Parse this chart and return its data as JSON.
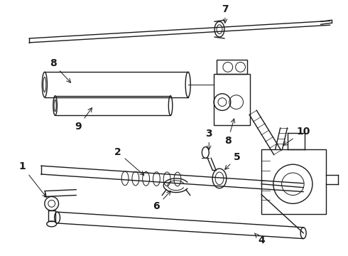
{
  "bg_color": "#ffffff",
  "line_color": "#1a1a1a",
  "label_color": "#000000",
  "label_fontsize": 10,
  "figsize": [
    4.9,
    3.6
  ],
  "dpi": 100
}
